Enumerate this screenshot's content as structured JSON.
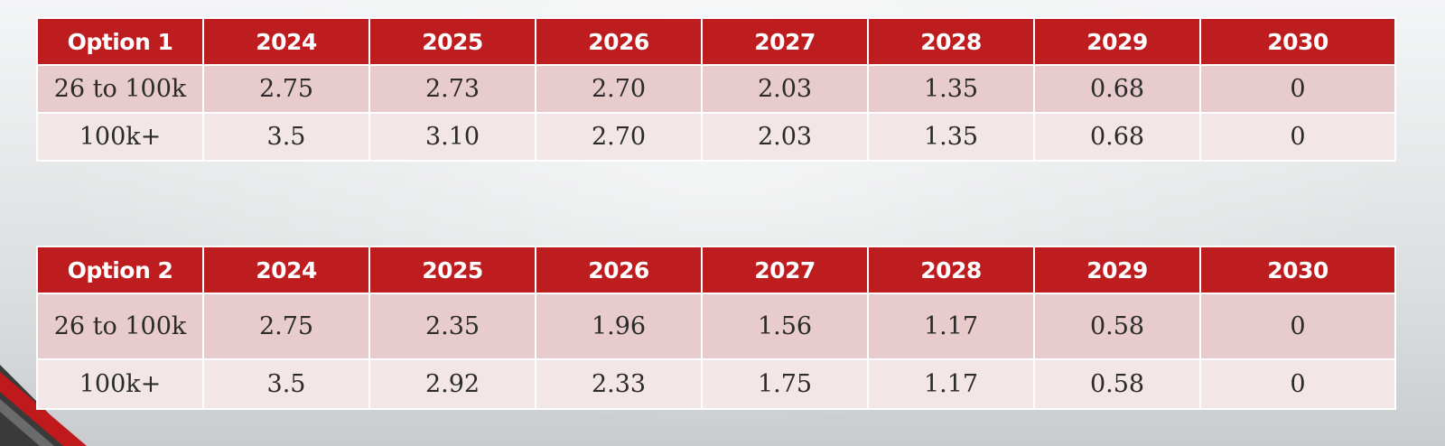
{
  "tables": [
    {
      "headers": [
        "Option 1",
        "2024",
        "2025",
        "2026",
        "2027",
        "2028",
        "2029",
        "2030"
      ],
      "rows": [
        [
          "26 to 100k",
          "2.75",
          "2.73",
          "2.70",
          "2.03",
          "1.35",
          "0.68",
          "0"
        ],
        [
          "100k+",
          "3.5",
          "3.10",
          "2.70",
          "2.03",
          "1.35",
          "0.68",
          "0"
        ]
      ]
    },
    {
      "headers": [
        "Option 2",
        "2024",
        "2025",
        "2026",
        "2027",
        "2028",
        "2029",
        "2030"
      ],
      "rows": [
        [
          "26 to 100k",
          "2.75",
          "2.35",
          "1.96",
          "1.56",
          "1.17",
          "0.58",
          "0"
        ],
        [
          "100k+",
          "3.5",
          "2.92",
          "2.33",
          "1.75",
          "1.17",
          "0.58",
          "0"
        ]
      ]
    }
  ],
  "colors": {
    "header_background": "#bd1d1f",
    "header_text": "#ffffff",
    "row_odd": "#e8cbcc",
    "row_even": "#f3e6e7",
    "accent": "#c0191c"
  }
}
